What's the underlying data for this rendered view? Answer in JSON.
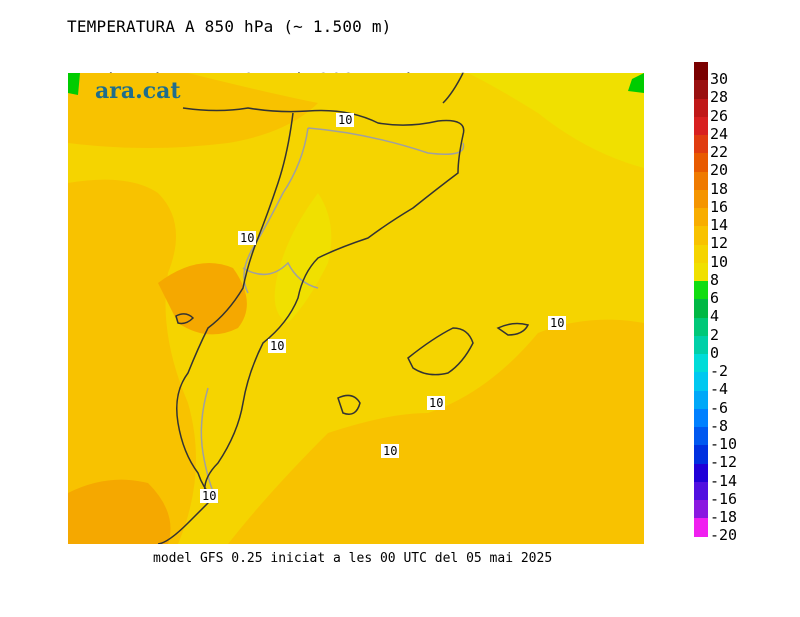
{
  "title": "TEMPERATURA A 850 hPa (~ 1.500 m)",
  "subtitle": {
    "day": "Dissabte",
    "date": "10.mai.2025 15h UTC"
  },
  "logo": "ara.cat",
  "footer": "model GFS 0.25 iniciat a les 00 UTC del 05 mai 2025",
  "contour_label": "10",
  "colors": {
    "warm_yellow": "#f5d400",
    "orange": "#f5a800",
    "deep_orange": "#f08a10",
    "green_edge": "#00cc00",
    "coast": "#333333",
    "border": "#a0a0a0"
  },
  "legend": {
    "ticks": [
      "30",
      "28",
      "26",
      "24",
      "22",
      "20",
      "18",
      "16",
      "14",
      "12",
      "10",
      "8",
      "6",
      "4",
      "2",
      "0",
      "-2",
      "-4",
      "-6",
      "-8",
      "-10",
      "-12",
      "-14",
      "-16",
      "-18",
      "-20"
    ],
    "colors": [
      "#7a0000",
      "#9a1010",
      "#c01818",
      "#d82020",
      "#e03c10",
      "#e85a00",
      "#ef7a00",
      "#f59500",
      "#f8ad00",
      "#f8c200",
      "#f5d400",
      "#f0e000",
      "#10dd10",
      "#00b844",
      "#00c878",
      "#00d0a8",
      "#00dcd8",
      "#00c8f0",
      "#00a8f8",
      "#0080ff",
      "#0058f0",
      "#0030e0",
      "#2000d8",
      "#5010e0",
      "#8a18e0",
      "#f020f0"
    ]
  }
}
